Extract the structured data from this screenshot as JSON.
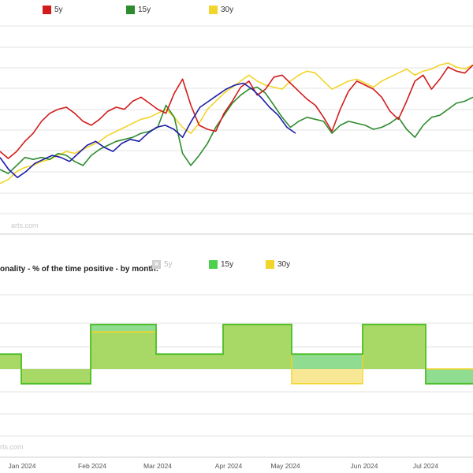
{
  "top_chart": {
    "legend": [
      {
        "label": "5y",
        "color": "#d21c1c"
      },
      {
        "label": "15y",
        "color": "#2e8b2e"
      },
      {
        "label": "30y",
        "color": "#f2d52a"
      }
    ],
    "watermark": "arts.com"
  },
  "bottom_chart": {
    "title": "onality - % of the time positive - by month:",
    "legend": [
      {
        "label": "5y",
        "color": "#bbbbbb",
        "disabled": true,
        "icon": "x-icon"
      },
      {
        "label": "15y",
        "color": "#4ccf4c"
      },
      {
        "label": "30y",
        "color": "#f2d52a"
      }
    ],
    "watermark": "rts.com"
  },
  "colors": {
    "red": "#d21c1c",
    "green": "#2e8b2e",
    "yellow": "#f2d52a",
    "blue": "#1c1ca8",
    "fill_green": "#7dd67d",
    "fill_yellow": "#f7e58a",
    "overlap": "#a8d865",
    "line_green": "#4cbf2a",
    "line_yellow": "#f2d52a"
  },
  "chart_data": [
    {
      "type": "line",
      "x_ticks": [
        "Jan 2024",
        "Feb 2024",
        "Mar 2024",
        "Apr 2024",
        "May 2024",
        "Jun 2024",
        "Jul 2024"
      ],
      "grid": true,
      "series": [
        {
          "name": "5y",
          "color": "#d21c1c",
          "values": [
            62,
            55,
            62,
            72,
            80,
            92,
            100,
            104,
            106,
            100,
            92,
            88,
            94,
            102,
            106,
            104,
            112,
            116,
            110,
            104,
            100,
            120,
            134,
            108,
            88,
            84,
            82,
            100,
            112,
            126,
            132,
            118,
            124,
            136,
            138,
            130,
            122,
            114,
            108,
            96,
            82,
            104,
            122,
            132,
            128,
            124,
            116,
            102,
            94,
            112,
            132,
            138,
            124,
            134,
            146,
            142,
            140,
            148
          ]
        },
        {
          "name": "15y",
          "color": "#2e8b2e",
          "values": [
            44,
            40,
            48,
            56,
            54,
            56,
            54,
            60,
            58,
            52,
            48,
            58,
            64,
            68,
            72,
            74,
            76,
            80,
            82,
            86,
            108,
            96,
            60,
            48,
            58,
            70,
            86,
            98,
            110,
            118,
            124,
            126,
            120,
            108,
            96,
            86,
            92,
            96,
            94,
            92,
            80,
            88,
            92,
            90,
            88,
            84,
            86,
            90,
            96,
            84,
            76,
            88,
            96,
            98,
            104,
            110,
            112,
            116
          ]
        },
        {
          "name": "30y",
          "color": "#f2d52a",
          "values": [
            30,
            34,
            42,
            46,
            48,
            52,
            54,
            58,
            62,
            60,
            64,
            68,
            72,
            78,
            82,
            86,
            90,
            94,
            96,
            100,
            104,
            96,
            86,
            80,
            90,
            104,
            112,
            120,
            126,
            132,
            138,
            132,
            128,
            126,
            124,
            132,
            138,
            142,
            140,
            132,
            124,
            128,
            132,
            134,
            130,
            126,
            132,
            136,
            140,
            144,
            138,
            142,
            144,
            148,
            150,
            146,
            144,
            148
          ]
        },
        {
          "name": "",
          "color": "#1c1ca8",
          "values": [
            56,
            44,
            36,
            42,
            50,
            54,
            58,
            56,
            52,
            60,
            68,
            72,
            66,
            62,
            70,
            74,
            72,
            80,
            86,
            88,
            84,
            76,
            92,
            106,
            112,
            118,
            124,
            128,
            130,
            124,
            116,
            106,
            98,
            86,
            80
          ]
        }
      ]
    },
    {
      "type": "area",
      "x_ticks": [
        "Jan 2024",
        "Feb 2024",
        "Mar 2024",
        "Apr 2024",
        "May 2024",
        "Jun 2024",
        "Jul 2024"
      ],
      "grid": true,
      "series": [
        {
          "name": "15y",
          "color": "#4cbf2a",
          "values": [
            60,
            40,
            80,
            60,
            80,
            60,
            80,
            40
          ]
        },
        {
          "name": "30y",
          "color": "#f2d52a",
          "values": [
            60,
            40,
            75,
            60,
            80,
            40,
            80,
            50
          ]
        }
      ]
    }
  ]
}
